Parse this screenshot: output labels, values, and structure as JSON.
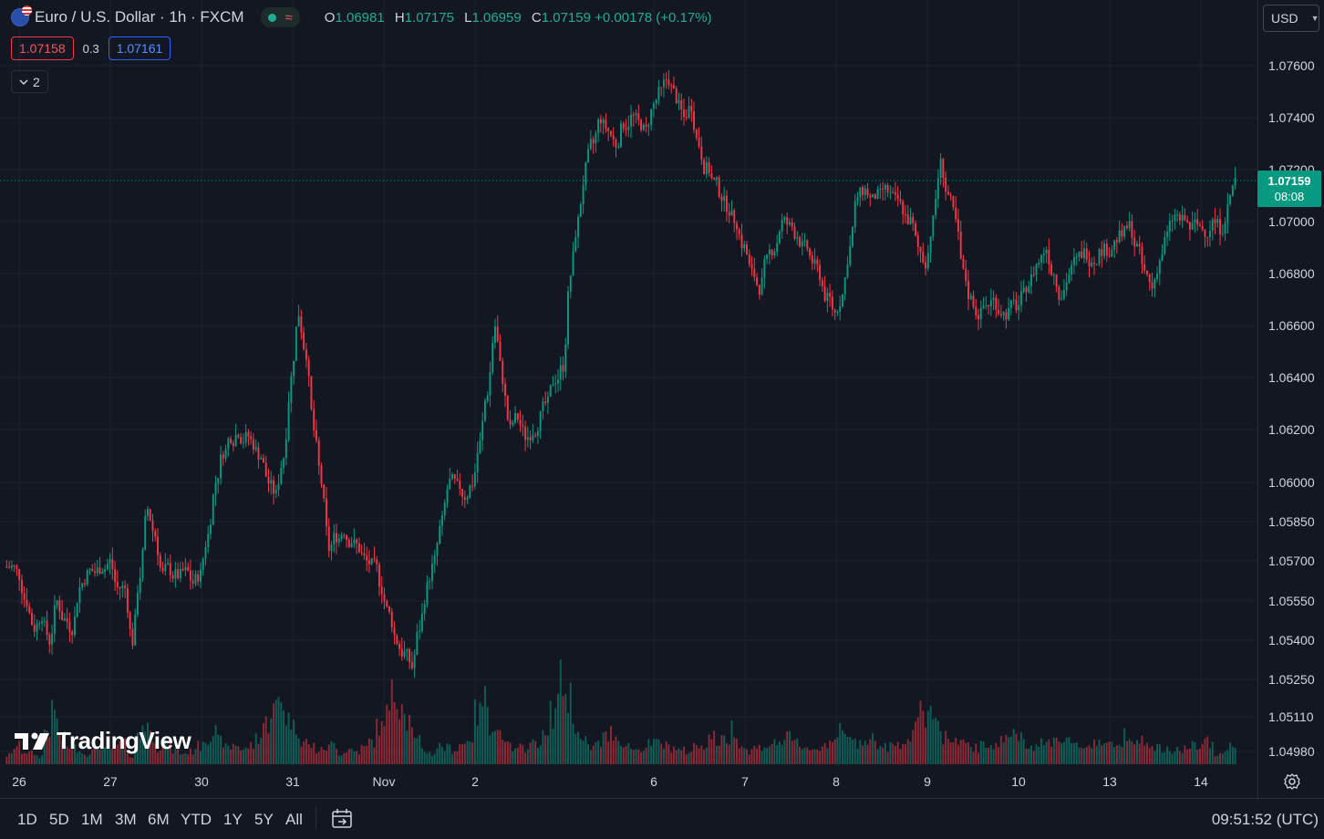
{
  "header": {
    "symbol_title": "Euro / U.S. Dollar · 1h · FXCM",
    "ohlc": {
      "o_label": "O",
      "o": "1.06981",
      "h_label": "H",
      "h": "1.07175",
      "l_label": "L",
      "l": "1.06959",
      "c_label": "C",
      "c": "1.07159",
      "change": "+0.00178 (+0.17%)"
    },
    "status_icons": [
      "market-open-dot",
      "wave-icon"
    ]
  },
  "quote": {
    "bid": "1.07158",
    "spread": "0.3",
    "ask": "1.07161"
  },
  "indicators_toggle": {
    "count": "2"
  },
  "currency_selector": {
    "value": "USD"
  },
  "last_price": {
    "price": "1.07159",
    "countdown": "08:08"
  },
  "brand": {
    "name": "TradingView"
  },
  "timeframes": [
    "1D",
    "5D",
    "1M",
    "3M",
    "6M",
    "YTD",
    "1Y",
    "5Y",
    "All"
  ],
  "clock": "09:51:52 (UTC)",
  "colors": {
    "up": "#089981",
    "down": "#f23645",
    "bg": "#131722",
    "grid": "#1e222d"
  },
  "chart_data": {
    "type": "candlestick",
    "title": "Euro / U.S. Dollar · 1h · FXCM",
    "y_axis": {
      "ticks": [
        "1.07600",
        "1.07400",
        "1.07200",
        "1.07000",
        "1.06800",
        "1.06600",
        "1.06400",
        "1.06200",
        "1.06000",
        "1.05850",
        "1.05700",
        "1.05550",
        "1.05400",
        "1.05250",
        "1.05110",
        "1.04980"
      ]
    },
    "x_axis": {
      "ticks": [
        "26",
        "27",
        "30",
        "31",
        "Nov",
        "2",
        "6",
        "7",
        "8",
        "9",
        "10",
        "13",
        "14"
      ]
    },
    "close_path": [
      1.0568,
      1.0565,
      1.0555,
      1.0545,
      1.055,
      1.054,
      1.0555,
      1.0548,
      1.0545,
      1.056,
      1.0565,
      1.0566,
      1.0568,
      1.057,
      1.056,
      1.056,
      1.054,
      1.0565,
      1.059,
      1.058,
      1.0565,
      1.0567,
      1.0565,
      1.0566,
      1.0562,
      1.0565,
      1.058,
      1.06,
      1.0612,
      1.0618,
      1.062,
      1.0617,
      1.0615,
      1.061,
      1.06,
      1.0595,
      1.061,
      1.064,
      1.0665,
      1.065,
      1.062,
      1.06,
      1.0575,
      1.058,
      1.0582,
      1.0578,
      1.0575,
      1.057,
      1.0568,
      1.056,
      1.055,
      1.054,
      1.0535,
      1.053,
      1.0545,
      1.056,
      1.057,
      1.0585,
      1.06,
      1.0598,
      1.0595,
      1.06,
      1.0615,
      1.0635,
      1.066,
      1.064,
      1.062,
      1.0625,
      1.0618,
      1.062,
      1.0625,
      1.063,
      1.064,
      1.0645,
      1.068,
      1.07,
      1.072,
      1.073,
      1.074,
      1.0735,
      1.073,
      1.0738,
      1.074,
      1.0738,
      1.0735,
      1.0745,
      1.075,
      1.0755,
      1.0748,
      1.074,
      1.0745,
      1.073,
      1.072,
      1.0715,
      1.071,
      1.0705,
      1.07,
      1.069,
      1.068,
      1.0675,
      1.0685,
      1.069,
      1.07,
      1.0698,
      1.0695,
      1.069,
      1.0685,
      1.068,
      1.067,
      1.0665,
      1.0672,
      1.069,
      1.071,
      1.0712,
      1.0708,
      1.071,
      1.0712,
      1.0708,
      1.0705,
      1.07,
      1.069,
      1.0685,
      1.07,
      1.0722,
      1.071,
      1.07,
      1.068,
      1.067,
      1.0665,
      1.0668,
      1.067,
      1.0666,
      1.0665,
      1.0668,
      1.0672,
      1.0678,
      1.0685,
      1.069,
      1.068,
      1.0672,
      1.068,
      1.0685,
      1.0688,
      1.0686,
      1.0688,
      1.069,
      1.0692,
      1.0695,
      1.0698,
      1.069,
      1.068,
      1.0675,
      1.0685,
      1.0695,
      1.0702,
      1.07,
      1.0698,
      1.0699,
      1.0697,
      1.07,
      1.0698,
      1.0705,
      1.0716
    ],
    "volume_path": [
      10,
      20,
      14,
      12,
      9,
      38,
      55,
      28,
      20,
      18,
      12,
      14,
      22,
      15,
      18,
      25,
      10,
      30,
      45,
      32,
      18,
      22,
      15,
      12,
      14,
      20,
      28,
      35,
      25,
      18,
      22,
      16,
      20,
      30,
      45,
      60,
      70,
      50,
      40,
      25,
      20,
      15,
      18,
      22,
      12,
      16,
      14,
      18,
      25,
      40,
      55,
      75,
      70,
      50,
      25,
      15,
      12,
      20,
      18,
      16,
      22,
      30,
      55,
      70,
      45,
      35,
      20,
      15,
      18,
      22,
      25,
      30,
      55,
      90,
      75,
      45,
      25,
      18,
      22,
      30,
      35,
      25,
      20,
      16,
      18,
      22,
      24,
      20,
      18,
      15,
      14,
      20,
      22,
      30,
      25,
      28,
      40,
      20,
      15,
      18,
      20,
      22,
      25,
      28,
      24,
      20,
      18,
      16,
      22,
      30,
      35,
      28,
      24,
      26,
      30,
      22,
      18,
      20,
      24,
      28,
      40,
      55,
      60,
      48,
      30,
      25,
      22,
      20,
      18,
      20,
      22,
      25,
      30,
      35,
      28,
      24,
      20,
      22,
      26,
      30,
      28,
      20,
      18,
      22,
      25,
      24,
      20,
      26,
      35,
      30,
      25,
      20,
      18,
      15,
      14,
      16,
      18,
      20,
      22,
      24,
      12,
      15,
      20
    ]
  }
}
